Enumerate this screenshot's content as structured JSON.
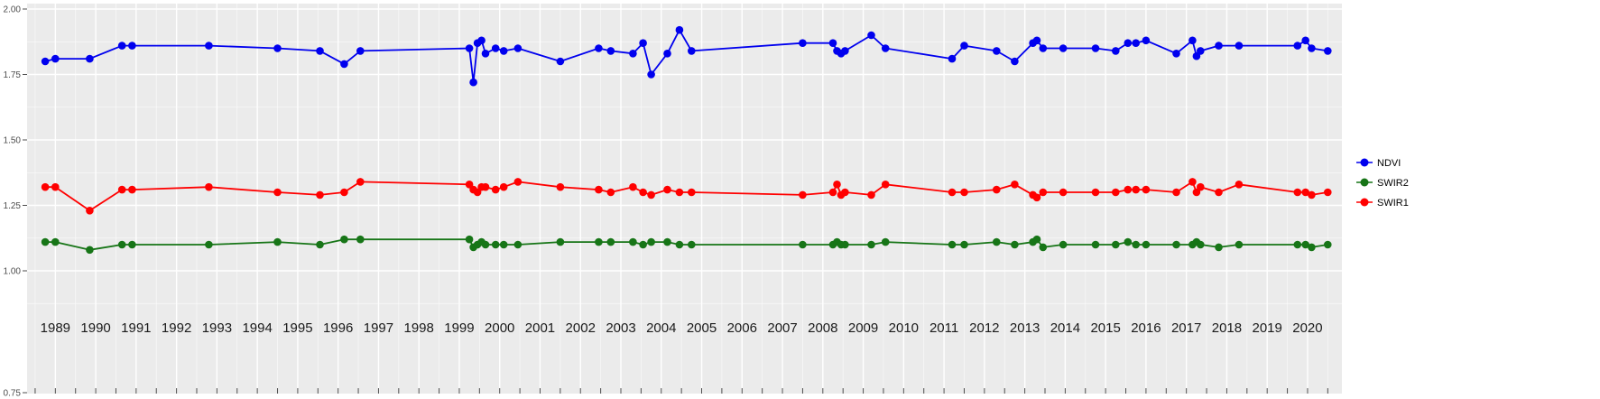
{
  "chart_data": {
    "type": "line",
    "title": "",
    "xlabel": "",
    "ylabel": "",
    "grid": true,
    "panel_background": "#EBEBEB",
    "gridline_color": "#FFFFFF",
    "xlim": [
      1988.3,
      2020.85
    ],
    "ylim": [
      0.75,
      2.0
    ],
    "x_ticks": [
      1989,
      1990,
      1991,
      1992,
      1993,
      1994,
      1995,
      1996,
      1997,
      1998,
      1999,
      2000,
      2001,
      2002,
      2003,
      2004,
      2005,
      2006,
      2007,
      2008,
      2009,
      2010,
      2011,
      2012,
      2013,
      2014,
      2015,
      2016,
      2017,
      2018,
      2019,
      2020
    ],
    "y_ticks": {
      "labels": [
        "2.00",
        "1.75",
        "1.50",
        "1.25",
        "1.00",
        "0.75"
      ],
      "values": [
        2.0,
        1.75,
        1.5,
        1.25,
        1.0,
        0.75
      ]
    },
    "x": [
      1988.75,
      1989.0,
      1989.85,
      1990.65,
      1990.9,
      1992.8,
      1994.5,
      1995.55,
      1996.15,
      1996.55,
      1999.25,
      1999.35,
      1999.45,
      1999.55,
      1999.65,
      1999.9,
      2000.1,
      2000.45,
      2001.5,
      2002.45,
      2002.75,
      2003.3,
      2003.55,
      2003.75,
      2004.15,
      2004.45,
      2004.75,
      2007.5,
      2008.25,
      2008.35,
      2008.45,
      2008.55,
      2009.2,
      2009.55,
      2011.2,
      2011.5,
      2012.3,
      2012.75,
      2013.2,
      2013.3,
      2013.45,
      2013.95,
      2014.75,
      2015.25,
      2015.55,
      2015.75,
      2016.0,
      2016.75,
      2017.15,
      2017.25,
      2017.35,
      2017.8,
      2018.3,
      2019.75,
      2019.95,
      2020.1,
      2020.5
    ],
    "series": [
      {
        "name": "NDVI",
        "color": "#0000EE",
        "values": [
          1.8,
          1.81,
          1.81,
          1.86,
          1.86,
          1.86,
          1.85,
          1.84,
          1.79,
          1.84,
          1.85,
          1.72,
          1.87,
          1.88,
          1.83,
          1.85,
          1.84,
          1.85,
          1.8,
          1.85,
          1.84,
          1.83,
          1.87,
          1.75,
          1.83,
          1.92,
          1.84,
          1.87,
          1.87,
          1.84,
          1.83,
          1.84,
          1.9,
          1.85,
          1.81,
          1.86,
          1.84,
          1.8,
          1.87,
          1.88,
          1.85,
          1.85,
          1.85,
          1.84,
          1.87,
          1.87,
          1.88,
          1.83,
          1.88,
          1.82,
          1.84,
          1.86,
          1.86,
          1.86,
          1.88,
          1.85,
          1.84
        ]
      },
      {
        "name": "SWIR2",
        "color": "#177517",
        "values": [
          1.11,
          1.11,
          1.08,
          1.1,
          1.1,
          1.1,
          1.11,
          1.1,
          1.12,
          1.12,
          1.12,
          1.09,
          1.1,
          1.11,
          1.1,
          1.1,
          1.1,
          1.1,
          1.11,
          1.11,
          1.11,
          1.11,
          1.1,
          1.11,
          1.11,
          1.1,
          1.1,
          1.1,
          1.1,
          1.11,
          1.1,
          1.1,
          1.1,
          1.11,
          1.1,
          1.1,
          1.11,
          1.1,
          1.11,
          1.12,
          1.09,
          1.1,
          1.1,
          1.1,
          1.11,
          1.1,
          1.1,
          1.1,
          1.1,
          1.11,
          1.1,
          1.09,
          1.1,
          1.1,
          1.1,
          1.09,
          1.1
        ]
      },
      {
        "name": "SWIR1",
        "color": "#FF0000",
        "values": [
          1.32,
          1.32,
          1.23,
          1.31,
          1.31,
          1.32,
          1.3,
          1.29,
          1.3,
          1.34,
          1.33,
          1.31,
          1.3,
          1.32,
          1.32,
          1.31,
          1.32,
          1.34,
          1.32,
          1.31,
          1.3,
          1.32,
          1.3,
          1.29,
          1.31,
          1.3,
          1.3,
          1.29,
          1.3,
          1.33,
          1.29,
          1.3,
          1.29,
          1.33,
          1.3,
          1.3,
          1.31,
          1.33,
          1.29,
          1.28,
          1.3,
          1.3,
          1.3,
          1.3,
          1.31,
          1.31,
          1.31,
          1.3,
          1.34,
          1.3,
          1.32,
          1.3,
          1.33,
          1.3,
          1.3,
          1.29,
          1.3
        ]
      }
    ],
    "legend": {
      "position": "right",
      "entries": [
        "NDVI",
        "SWIR2",
        "SWIR1"
      ]
    }
  }
}
